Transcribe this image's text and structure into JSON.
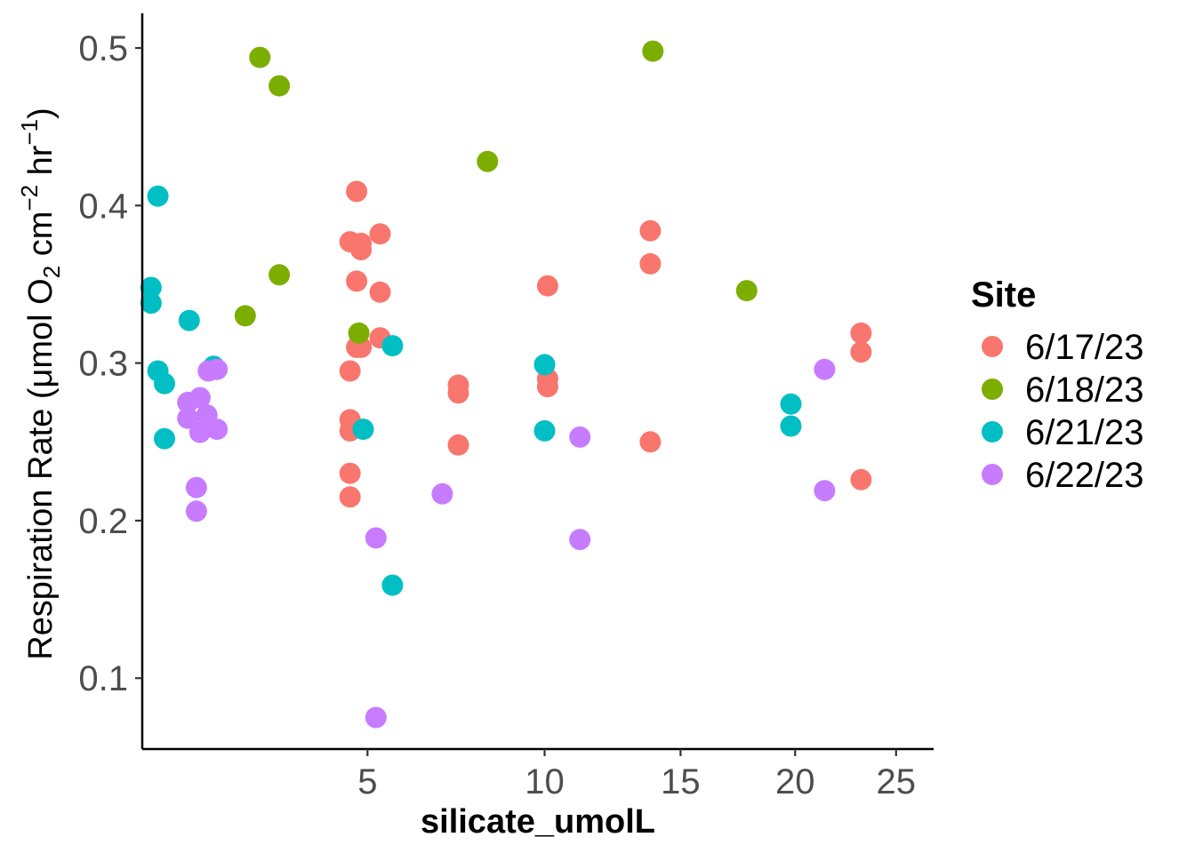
{
  "chart_data": {
    "type": "scatter",
    "title": "",
    "xlabel": "silicate_umolL",
    "ylabel": {
      "main": "Respiration Rate (",
      "mu": "μ",
      "unit_a": "mol O",
      "sub": "2",
      "unit_b": " cm",
      "sup1": "−2",
      "unit_c": " hr",
      "sup2": "−1",
      "close": ")"
    },
    "x_scale": "sqrt",
    "xlim": [
      1.12,
      27.0
    ],
    "ylim": [
      0.055,
      0.522
    ],
    "x_ticks": [
      5,
      10,
      15,
      20,
      25
    ],
    "x_tick_labels": [
      "5",
      "10",
      "15",
      "20",
      "25"
    ],
    "y_ticks": [
      0.1,
      0.2,
      0.3,
      0.4,
      0.5
    ],
    "y_tick_labels": [
      "0.1",
      "0.2",
      "0.3",
      "0.4",
      "0.5"
    ],
    "grid": false,
    "legend_title": "Site",
    "legend_position": "right",
    "series": [
      {
        "name": "6/17/23",
        "color": "#F8766D",
        "points": [
          [
            4.75,
            0.409
          ],
          [
            4.6,
            0.377
          ],
          [
            4.85,
            0.376
          ],
          [
            4.85,
            0.372
          ],
          [
            5.3,
            0.382
          ],
          [
            4.75,
            0.352
          ],
          [
            5.3,
            0.345
          ],
          [
            5.3,
            0.316
          ],
          [
            4.75,
            0.31
          ],
          [
            4.85,
            0.31
          ],
          [
            4.6,
            0.295
          ],
          [
            4.6,
            0.264
          ],
          [
            4.6,
            0.257
          ],
          [
            4.6,
            0.23
          ],
          [
            4.6,
            0.215
          ],
          [
            7.35,
            0.286
          ],
          [
            7.35,
            0.281
          ],
          [
            7.35,
            0.248
          ],
          [
            10.1,
            0.349
          ],
          [
            10.1,
            0.29
          ],
          [
            10.1,
            0.285
          ],
          [
            13.8,
            0.384
          ],
          [
            13.8,
            0.363
          ],
          [
            13.8,
            0.25
          ],
          [
            23.2,
            0.319
          ],
          [
            23.2,
            0.307
          ],
          [
            23.2,
            0.226
          ]
        ]
      },
      {
        "name": "6/18/23",
        "color": "#7CAE00",
        "points": [
          [
            2.8,
            0.494
          ],
          [
            3.15,
            0.476
          ],
          [
            3.15,
            0.356
          ],
          [
            2.55,
            0.33
          ],
          [
            4.8,
            0.319
          ],
          [
            8.2,
            0.428
          ],
          [
            13.9,
            0.498
          ],
          [
            17.8,
            0.346
          ]
        ]
      },
      {
        "name": "6/21/23",
        "color": "#00BFC4",
        "points": [
          [
            1.3,
            0.406
          ],
          [
            1.22,
            0.348
          ],
          [
            1.22,
            0.338
          ],
          [
            1.3,
            0.295
          ],
          [
            1.38,
            0.287
          ],
          [
            1.38,
            0.252
          ],
          [
            1.7,
            0.327
          ],
          [
            2.05,
            0.298
          ],
          [
            4.9,
            0.258
          ],
          [
            5.6,
            0.311
          ],
          [
            5.6,
            0.159
          ],
          [
            10.0,
            0.299
          ],
          [
            10.0,
            0.257
          ],
          [
            19.8,
            0.274
          ],
          [
            19.8,
            0.26
          ]
        ]
      },
      {
        "name": "6/22/23",
        "color": "#C77CFF",
        "points": [
          [
            1.68,
            0.275
          ],
          [
            1.68,
            0.265
          ],
          [
            1.8,
            0.221
          ],
          [
            1.8,
            0.206
          ],
          [
            1.85,
            0.278
          ],
          [
            1.85,
            0.256
          ],
          [
            1.95,
            0.267
          ],
          [
            1.97,
            0.295
          ],
          [
            2.1,
            0.296
          ],
          [
            2.1,
            0.258
          ],
          [
            5.2,
            0.189
          ],
          [
            5.2,
            0.075
          ],
          [
            6.9,
            0.217
          ],
          [
            11.2,
            0.253
          ],
          [
            11.2,
            0.188
          ],
          [
            21.4,
            0.296
          ],
          [
            21.4,
            0.219
          ]
        ]
      }
    ]
  }
}
